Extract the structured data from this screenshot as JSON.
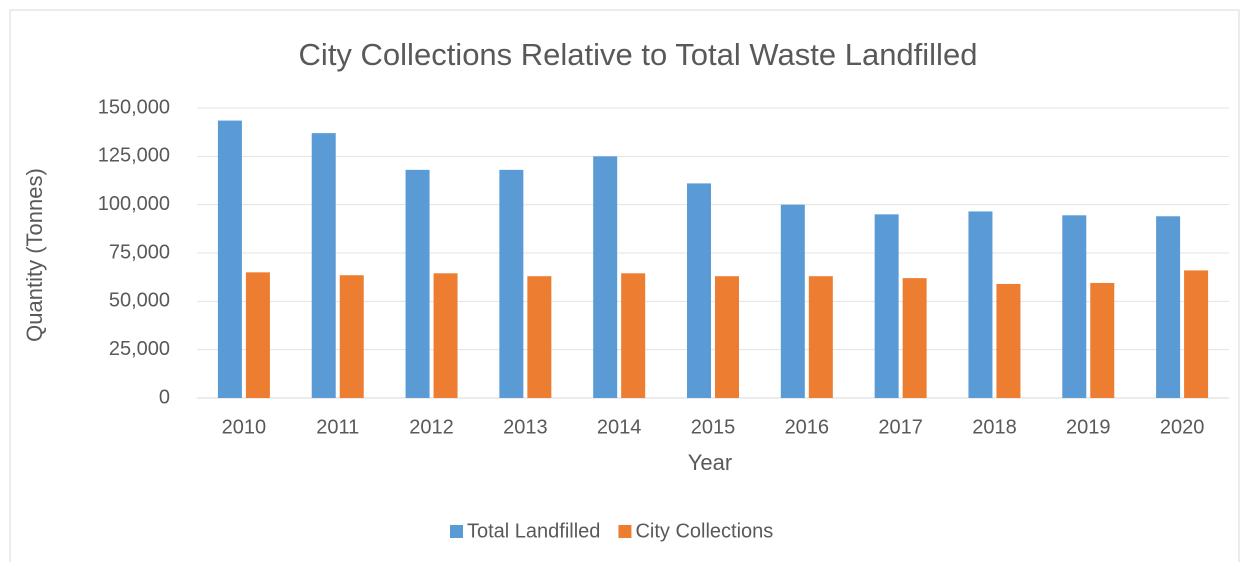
{
  "chart_data": {
    "type": "bar",
    "title": "City Collections Relative to Total Waste Landfilled",
    "x_label": "Year",
    "y_label": "Quantity (Tonnes)",
    "categories": [
      "2010",
      "2011",
      "2012",
      "2013",
      "2014",
      "2015",
      "2016",
      "2017",
      "2018",
      "2019",
      "2020"
    ],
    "series": [
      {
        "name": "Total Landfilled",
        "color": "#5b9bd5",
        "values": [
          143500,
          137000,
          118000,
          118000,
          125000,
          111000,
          100000,
          95000,
          96500,
          94500,
          94000
        ]
      },
      {
        "name": "City Collections",
        "color": "#ed7d31",
        "values": [
          65000,
          63500,
          64500,
          63000,
          64500,
          63000,
          63000,
          62000,
          59000,
          59500,
          66000
        ]
      }
    ],
    "ylim": [
      0,
      150000
    ],
    "yticks": [
      0,
      {
        "value": 25000,
        "label": "25,000"
      },
      {
        "value": 50000,
        "label": "50,000"
      },
      {
        "value": 75000,
        "label": "75,000"
      },
      {
        "value": 100000,
        "label": "100,000"
      },
      {
        "value": 125000,
        "label": "125,000"
      },
      {
        "value": 150000,
        "label": "150,000"
      }
    ],
    "grid": true,
    "legend": "bottom"
  }
}
